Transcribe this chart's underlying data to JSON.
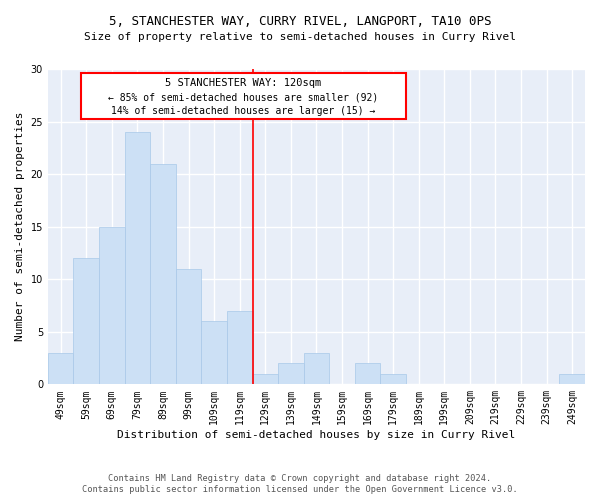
{
  "title": "5, STANCHESTER WAY, CURRY RIVEL, LANGPORT, TA10 0PS",
  "subtitle": "Size of property relative to semi-detached houses in Curry Rivel",
  "xlabel": "Distribution of semi-detached houses by size in Curry Rivel",
  "ylabel": "Number of semi-detached properties",
  "bar_color": "#cce0f5",
  "bar_edge_color": "#a8c8e8",
  "categories": [
    "49sqm",
    "59sqm",
    "69sqm",
    "79sqm",
    "89sqm",
    "99sqm",
    "109sqm",
    "119sqm",
    "129sqm",
    "139sqm",
    "149sqm",
    "159sqm",
    "169sqm",
    "179sqm",
    "189sqm",
    "199sqm",
    "209sqm",
    "219sqm",
    "229sqm",
    "239sqm",
    "249sqm"
  ],
  "values": [
    3,
    12,
    15,
    24,
    21,
    11,
    6,
    7,
    1,
    2,
    3,
    0,
    2,
    1,
    0,
    0,
    0,
    0,
    0,
    0,
    1
  ],
  "ylim": [
    0,
    30
  ],
  "yticks": [
    0,
    5,
    10,
    15,
    20,
    25,
    30
  ],
  "property_label": "5 STANCHESTER WAY: 120sqm",
  "pct_smaller": 85,
  "n_smaller": 92,
  "pct_larger": 14,
  "n_larger": 15,
  "vline_x_index": 7.5,
  "plot_bg_color": "#e8eef8",
  "fig_bg_color": "#ffffff",
  "grid_color": "#ffffff",
  "footer_line1": "Contains HM Land Registry data © Crown copyright and database right 2024.",
  "footer_line2": "Contains public sector information licensed under the Open Government Licence v3.0."
}
